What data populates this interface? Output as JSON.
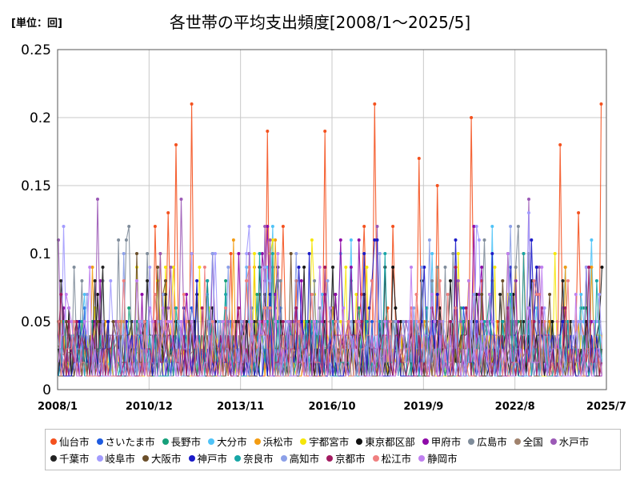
{
  "chart_data": {
    "type": "line",
    "unit_label": "[単位：回]",
    "title": "各世帯の平均支出頻度[2008/1～2025/5]",
    "xlabel": "",
    "ylabel": "",
    "ylim": [
      0,
      0.25
    ],
    "yticks": [
      "0",
      "0.05",
      "0.1",
      "0.15",
      "0.2",
      "0.25"
    ],
    "yticks_values": [
      0,
      0.05,
      0.1,
      0.15,
      0.2,
      0.25
    ],
    "xlim": [
      "2008/1",
      "2025/7"
    ],
    "xticks": [
      "2008/1",
      "2010/12",
      "2013/11",
      "2016/10",
      "2019/9",
      "2022/8",
      "2025/7"
    ],
    "grid": true,
    "legend_position": "bottom",
    "series": [
      {
        "name": "仙台市",
        "color": "#F4511E",
        "max": 0.21
      },
      {
        "name": "さいたま市",
        "color": "#1E5BE0",
        "max": 0.06
      },
      {
        "name": "長野市",
        "color": "#16A07A",
        "max": 0.08
      },
      {
        "name": "大分市",
        "color": "#4FC3F7",
        "max": 0.12
      },
      {
        "name": "浜松市",
        "color": "#F39C12",
        "max": 0.11
      },
      {
        "name": "宇都宮市",
        "color": "#F5E60A",
        "max": 0.11
      },
      {
        "name": "東京都区部",
        "color": "#111111",
        "max": 0.09
      },
      {
        "name": "甲府市",
        "color": "#8E0AA8",
        "max": 0.12
      },
      {
        "name": "広島市",
        "color": "#7F8C9A",
        "max": 0.12
      },
      {
        "name": "全国",
        "color": "#A0826D",
        "max": 0.04
      },
      {
        "name": "水戸市",
        "color": "#9B59B6",
        "max": 0.14
      },
      {
        "name": "千葉市",
        "color": "#222222",
        "max": 0.09
      },
      {
        "name": "岐阜市",
        "color": "#A29BFE",
        "max": 0.13
      },
      {
        "name": "大阪市",
        "color": "#6B4F2A",
        "max": 0.1
      },
      {
        "name": "神戸市",
        "color": "#1A1AC8",
        "max": 0.11
      },
      {
        "name": "奈良市",
        "color": "#17A6A6",
        "max": 0.1
      },
      {
        "name": "高知市",
        "color": "#8CA0E8",
        "max": 0.12
      },
      {
        "name": "京都市",
        "color": "#A31A60",
        "max": 0.09
      },
      {
        "name": "松江市",
        "color": "#F08080",
        "max": 0.09
      },
      {
        "name": "静岡市",
        "color": "#C080F0",
        "max": 0.1
      }
    ]
  }
}
